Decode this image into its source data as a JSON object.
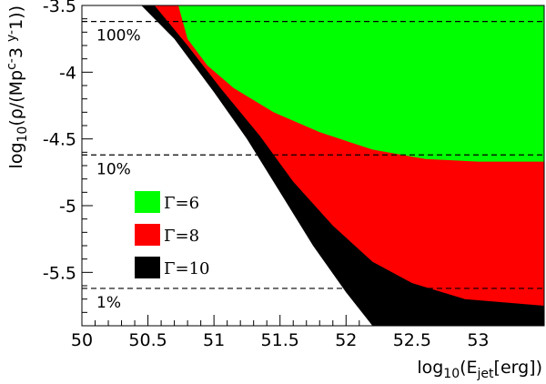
{
  "chart_data": {
    "type": "heatmap",
    "title": "",
    "xlabel": "log10(Ejet[erg])",
    "ylabel": "log10(ρ/(Mpc-3 y-1))",
    "xlim": [
      50.0,
      53.5
    ],
    "ylim": [
      -5.9,
      -3.5
    ],
    "x_ticks": [
      "50",
      "50.5",
      "51",
      "51.5",
      "52",
      "52.5",
      "53"
    ],
    "y_ticks": [
      "-3.5",
      "-4",
      "-4.5",
      "-5",
      "-5.5"
    ],
    "legend_position": "center-left",
    "series": [
      {
        "name": "Γ=10",
        "color": "#000000",
        "note_boundary": "lower boundary of excluded region",
        "boundary": [
          [
            50.45,
            -3.5
          ],
          [
            50.7,
            -3.75
          ],
          [
            51.0,
            -4.15
          ],
          [
            51.25,
            -4.5
          ],
          [
            51.5,
            -4.9
          ],
          [
            51.75,
            -5.3
          ],
          [
            52.0,
            -5.65
          ],
          [
            52.2,
            -5.9
          ],
          [
            53.5,
            -5.9
          ]
        ]
      },
      {
        "name": "Γ=8",
        "color": "#ff0000",
        "boundary": [
          [
            50.55,
            -3.5
          ],
          [
            50.8,
            -3.8
          ],
          [
            51.05,
            -4.12
          ],
          [
            51.35,
            -4.48
          ],
          [
            51.6,
            -4.82
          ],
          [
            51.9,
            -5.15
          ],
          [
            52.2,
            -5.42
          ],
          [
            52.5,
            -5.58
          ],
          [
            52.9,
            -5.7
          ],
          [
            53.5,
            -5.75
          ]
        ]
      },
      {
        "name": "Γ=6",
        "color": "#00ff00",
        "boundary": [
          [
            50.73,
            -3.5
          ],
          [
            50.8,
            -3.75
          ],
          [
            50.95,
            -3.95
          ],
          [
            51.15,
            -4.12
          ],
          [
            51.45,
            -4.3
          ],
          [
            51.8,
            -4.45
          ],
          [
            52.2,
            -4.58
          ],
          [
            52.6,
            -4.65
          ],
          [
            53.0,
            -4.67
          ],
          [
            53.5,
            -4.67
          ]
        ]
      }
    ],
    "reference_lines": [
      {
        "label": "100%",
        "y": -3.62
      },
      {
        "label": "10%",
        "y": -4.62
      },
      {
        "label": "1%",
        "y": -5.62
      }
    ]
  }
}
